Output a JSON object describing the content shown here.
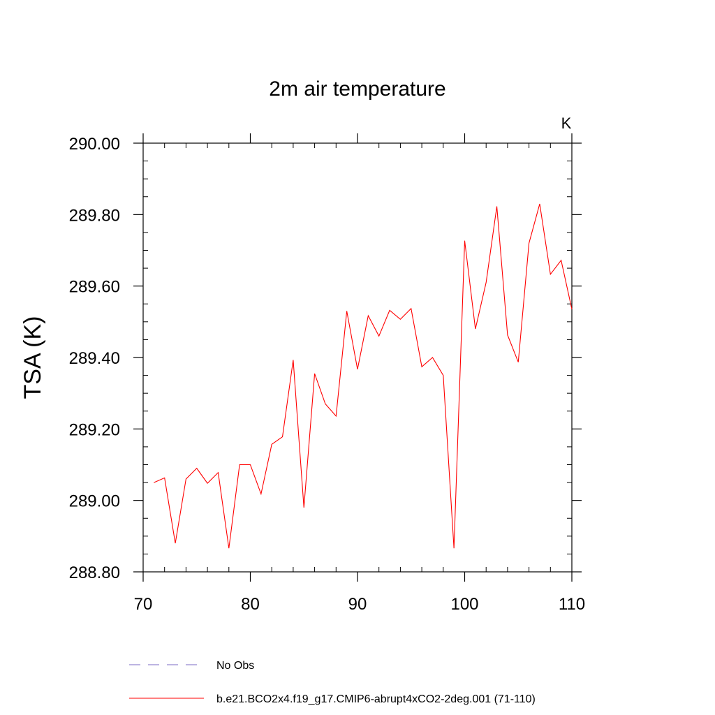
{
  "chart_data": {
    "type": "line",
    "title": "2m air temperature",
    "units_label": "K",
    "xlabel": "",
    "ylabel": "TSA  (K)",
    "xlim": [
      70,
      110
    ],
    "ylim": [
      288.8,
      290.0
    ],
    "x_ticks": [
      70,
      80,
      90,
      100,
      110
    ],
    "y_ticks": [
      288.8,
      289.0,
      289.2,
      289.4,
      289.6,
      289.8,
      290.0
    ],
    "y_tick_labels": [
      "288.80",
      "289.00",
      "289.20",
      "289.40",
      "289.60",
      "289.80",
      "290.00"
    ],
    "x_minor_step": 2,
    "y_minor_step": 0.05,
    "series": [
      {
        "name": "b.e21.BCO2x4.f19_g17.CMIP6-abrupt4xCO2-2deg.001 (71-110)",
        "color": "#ff0000",
        "style": "solid",
        "x": [
          71,
          72,
          73,
          74,
          75,
          76,
          77,
          78,
          79,
          80,
          81,
          82,
          83,
          84,
          85,
          86,
          87,
          88,
          89,
          90,
          91,
          92,
          93,
          94,
          95,
          96,
          97,
          98,
          99,
          100,
          101,
          102,
          103,
          104,
          105,
          106,
          107,
          108,
          109,
          110
        ],
        "values": [
          289.05,
          289.063,
          288.88,
          289.06,
          289.09,
          289.048,
          289.078,
          288.866,
          289.1,
          289.1,
          289.018,
          289.157,
          289.178,
          289.393,
          288.98,
          289.355,
          289.27,
          289.236,
          289.53,
          289.367,
          289.517,
          289.46,
          289.532,
          289.507,
          289.537,
          289.374,
          289.4,
          289.35,
          288.866,
          289.727,
          289.48,
          289.61,
          289.823,
          289.463,
          289.387,
          289.72,
          289.83,
          289.633,
          289.672,
          289.535
        ]
      }
    ],
    "legend": [
      {
        "label": "No Obs",
        "color": "#7b68c4",
        "style": "dashed"
      },
      {
        "label": "b.e21.BCO2x4.f19_g17.CMIP6-abrupt4xCO2-2deg.001 (71-110)",
        "color": "#ff0000",
        "style": "solid"
      }
    ]
  }
}
